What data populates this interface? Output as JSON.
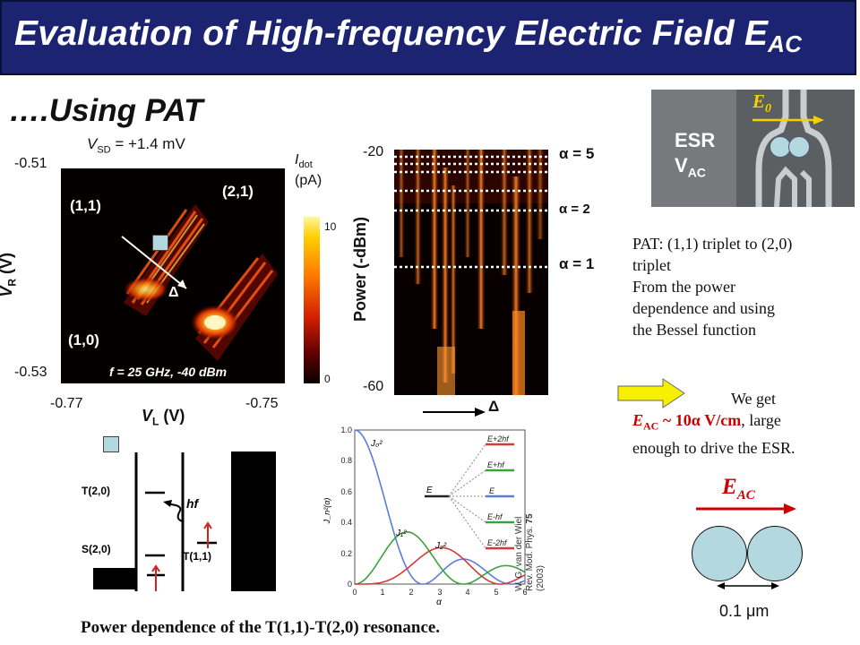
{
  "slide": {
    "title": "Evaluation of High-frequency Electric Field E",
    "title_sub": "AC",
    "subtitle": "….Using PAT"
  },
  "left_plot": {
    "vsd_label": "V",
    "vsd_sub": "SD",
    "vsd_value": " = +1.4 mV",
    "y_top": "-0.51",
    "y_bottom": "-0.53",
    "x_left": "-0.77",
    "x_right": "-0.75",
    "y_axis_label": "V",
    "y_axis_sub": "R",
    "y_axis_unit": " (V)",
    "x_axis_label": "V",
    "x_axis_sub": "L",
    "x_axis_unit": " (V)",
    "label_11": "(1,1)",
    "label_21": "(2,1)",
    "label_10": "(1,0)",
    "delta": "Δ",
    "freq_label": "f = 25 GHz, -40 dBm",
    "colorbar_title": "I",
    "colorbar_title_sub": "dot",
    "colorbar_unit": "(pA)",
    "colorbar_max": "10",
    "colorbar_min": "0"
  },
  "middle_plot": {
    "y_top": "-20",
    "y_bottom": "-60",
    "y_axis_label": "Power (-dBm)",
    "alpha5": "α = 5",
    "alpha2": "α = 2",
    "alpha1": "α = 1",
    "delta": "Δ"
  },
  "energy_diagram": {
    "t20": "T(2,0)",
    "s20": "S(2,0)",
    "hf": "hf",
    "t11": "T(1,1)"
  },
  "bessel_plot": {
    "legend": [
      "E+2hf",
      "E+hf",
      "E",
      "E-hf",
      "E-2hf"
    ],
    "center_label": "E",
    "x_ticks": [
      "0",
      "1",
      "2",
      "3",
      "4",
      "5",
      "6"
    ],
    "y_ticks": [
      "0",
      "0.2",
      "0.4",
      "0.6",
      "0.8",
      "1.0"
    ],
    "x_axis_label": "α",
    "y_axis_label": "J_n²(α)",
    "curve_labels": [
      "J₀²",
      "J₁²",
      "J₂²"
    ],
    "series_colors": [
      "#5b7fd6",
      "#3aa33a",
      "#d43a3a"
    ]
  },
  "citation": {
    "line1": "W. G. van der Wiel",
    "line2_prefix": "Rev. Mod. Phys. ",
    "line2_vol": "75",
    "line3": "(2003)"
  },
  "caption": "Power dependence of the T(1,1)-T(2,0) resonance.",
  "esr_image": {
    "e0_label": "E",
    "e0_sub": "0",
    "esr_label": "ESR",
    "vac_label": "V",
    "vac_sub": "AC"
  },
  "right_text": {
    "pat_lines": [
      "PAT: (1,1) triplet to (2,0)",
      "triplet",
      "From the power",
      "dependence and using",
      "the Bessel function"
    ],
    "we_get": "We get",
    "eac_label": "E",
    "eac_sub": "AC",
    "eac_value": " ~ 10α V/cm",
    "eac_rest": ", large",
    "line3": "enough to drive the ESR.",
    "eac_diagram_label": "E",
    "eac_diagram_sub": "AC",
    "distance": "0.1 μm"
  },
  "colors": {
    "title_bar": "#1c2472",
    "accent_red": "#cc0000",
    "arrow_yellow": "#f7f000",
    "dot_fill": "#b4d8df"
  }
}
